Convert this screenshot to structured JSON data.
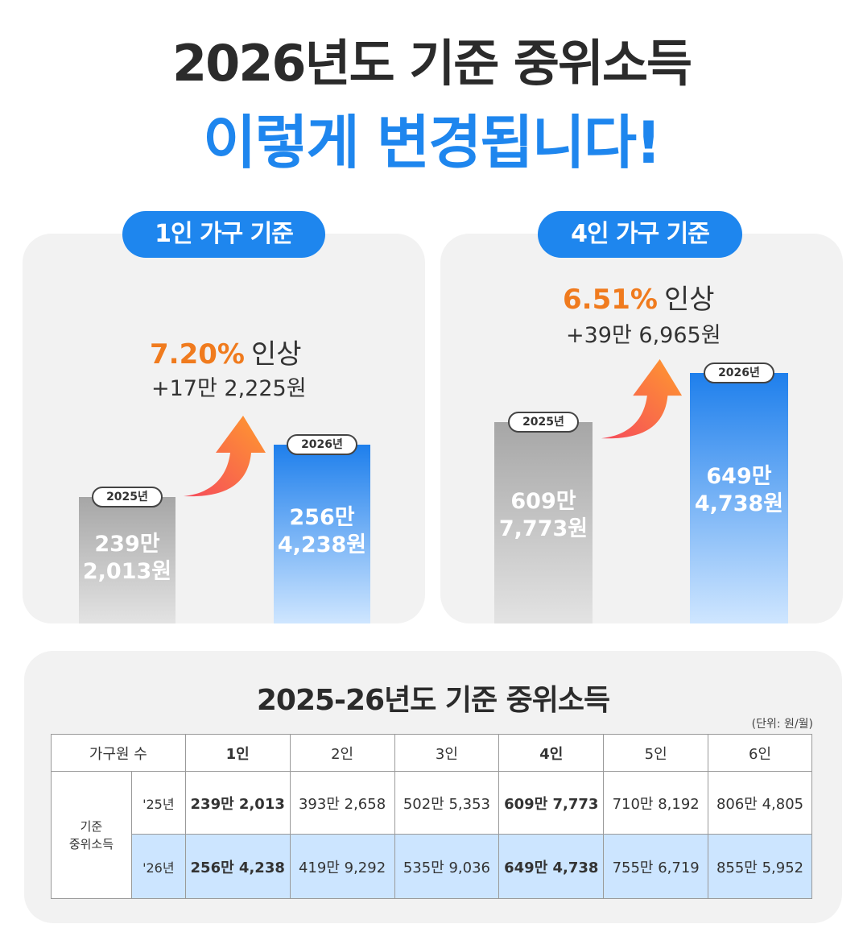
{
  "title": {
    "line1": "2026년도 기준 중위소득",
    "line2": "이렇게 변경됩니다!"
  },
  "colors": {
    "accent_blue": "#1e86ee",
    "accent_orange": "#f07b1e",
    "card_bg": "#f2f2f2"
  },
  "chart_data": [
    {
      "type": "bar",
      "title": "1인 가구 기준",
      "categories": [
        "2025년",
        "2026년"
      ],
      "values": [
        2392013,
        2564238
      ],
      "value_labels": [
        [
          "239만",
          "2,013원"
        ],
        [
          "256만",
          "4,238원"
        ]
      ],
      "increase_rate": "7.20%",
      "increase_word": "인상",
      "increase_amount": "+17만 2,225원",
      "xlabel": "",
      "ylabel": ""
    },
    {
      "type": "bar",
      "title": "4인 가구 기준",
      "categories": [
        "2025년",
        "2026년"
      ],
      "values": [
        6097773,
        6494738
      ],
      "value_labels": [
        [
          "609만",
          "7,773원"
        ],
        [
          "649만",
          "4,738원"
        ]
      ],
      "increase_rate": "6.51%",
      "increase_word": "인상",
      "increase_amount": "+39만 6,965원",
      "xlabel": "",
      "ylabel": ""
    }
  ],
  "table": {
    "title": "2025-26년도 기준 중위소득",
    "unit": "(단위: 원/월)",
    "header_label": "가구원 수",
    "columns": [
      "1인",
      "2인",
      "3인",
      "4인",
      "5인",
      "6인"
    ],
    "row_group_label_1": "기준",
    "row_group_label_2": "중위소득",
    "rows": [
      {
        "year": "'25년",
        "values": [
          "239만 2,013",
          "393만 2,658",
          "502만 5,353",
          "609만 7,773",
          "710만 8,192",
          "806만 4,805"
        ]
      },
      {
        "year": "'26년",
        "values": [
          "256만 4,238",
          "419만 9,292",
          "535만 9,036",
          "649만 4,738",
          "755만 6,719",
          "855만 5,952"
        ]
      }
    ]
  },
  "icons": {
    "increase_arrow": "curved-up-arrow-icon"
  }
}
